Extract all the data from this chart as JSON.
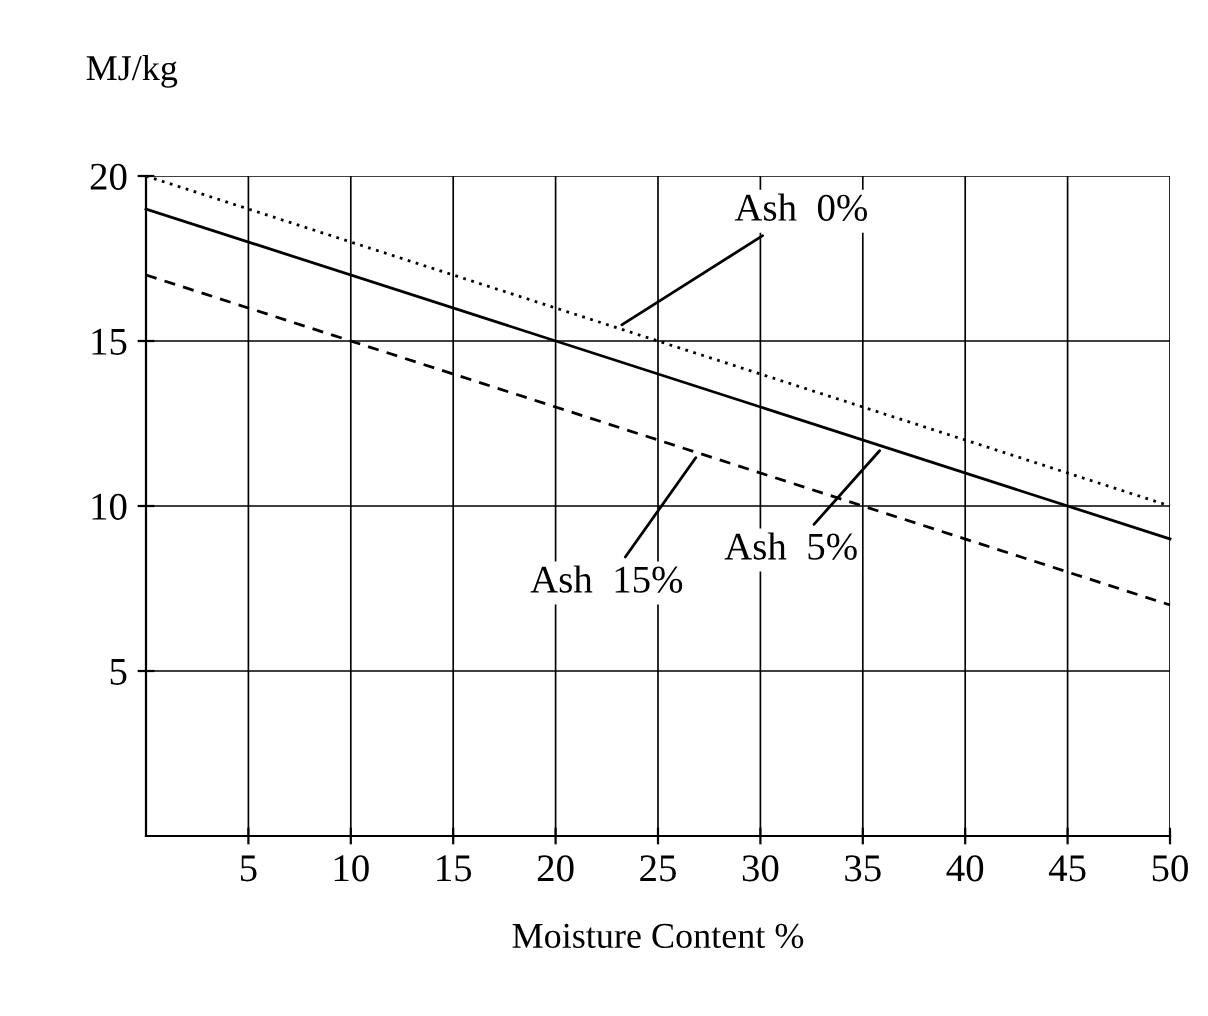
{
  "chart_data": {
    "type": "line",
    "ylabel": "MJ/kg",
    "xlabel": "Moisture Content %",
    "xlim": [
      0,
      50
    ],
    "ylim": [
      0,
      20
    ],
    "xticks": [
      5,
      10,
      15,
      20,
      25,
      30,
      35,
      40,
      45,
      50
    ],
    "yticks": [
      5,
      10,
      15,
      20
    ],
    "grid": true,
    "marker": "none",
    "x": [
      0,
      50
    ],
    "series": [
      {
        "values": [
          20,
          10
        ],
        "color": "#000000",
        "line_style": "dotted"
      },
      {
        "values": [
          19,
          9
        ],
        "color": "#000000",
        "line_style": "solid"
      },
      {
        "values": [
          17,
          7
        ],
        "color": "#000000",
        "line_style": "dashed"
      }
    ],
    "annotations": [
      {
        "text": "Ash  0%",
        "x": 23,
        "y": 15.4
      },
      {
        "text": "Ash  15%",
        "x": 27,
        "y": 11.6
      },
      {
        "text": "Ash  5%",
        "x": 36,
        "y": 11.8
      }
    ]
  }
}
